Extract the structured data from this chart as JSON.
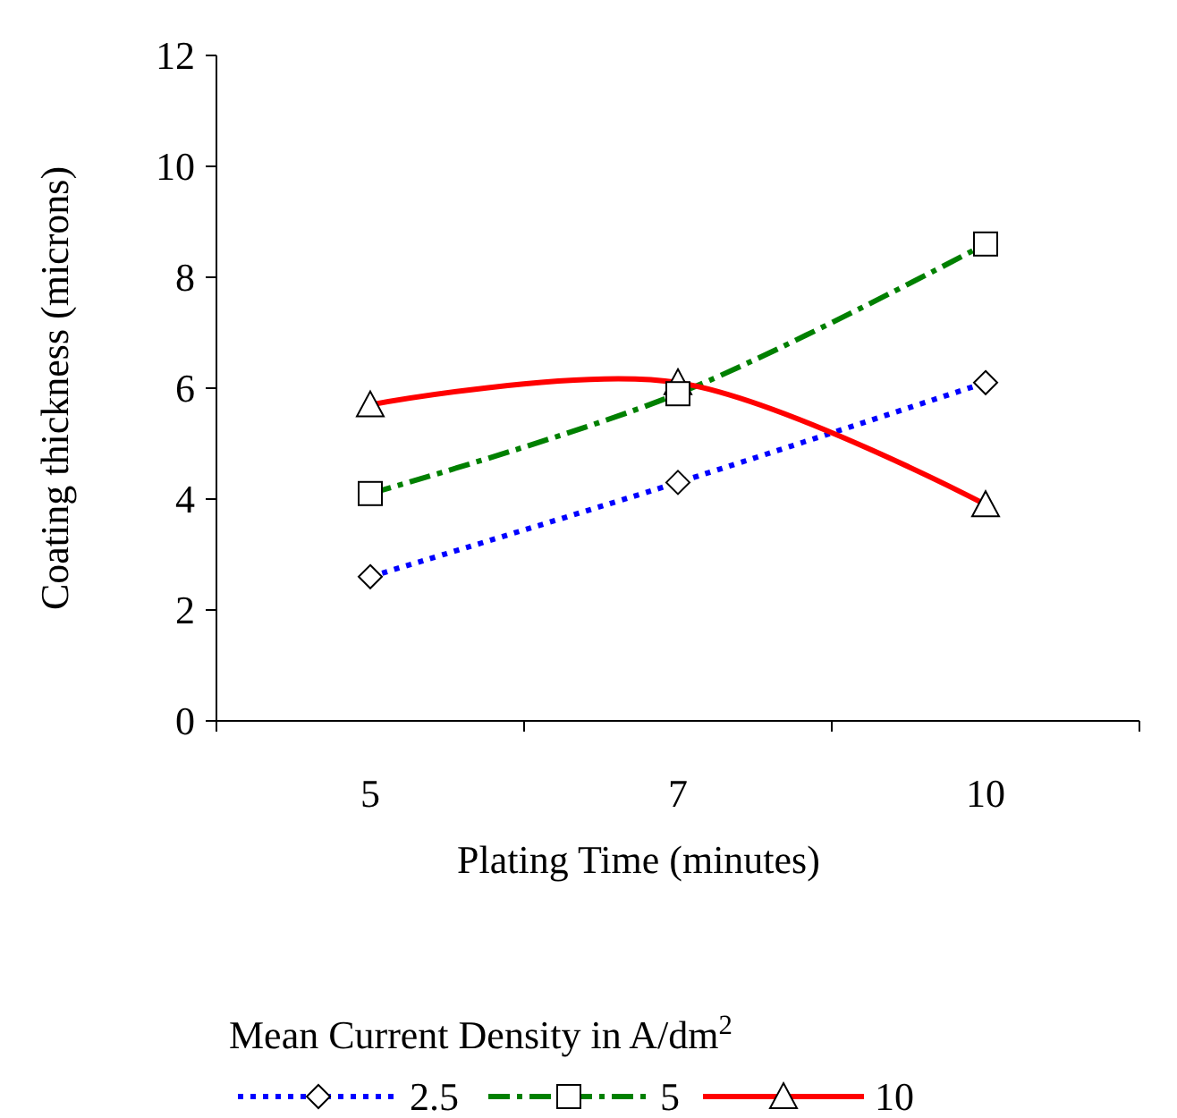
{
  "chart_data": {
    "type": "line",
    "xlabel": "Plating Time (minutes)",
    "ylabel": "Coating thickness (microns)",
    "legend_title": "Mean Current Density in A/dm$^{2}$",
    "categories": [
      "5",
      "7",
      "10"
    ],
    "ylim": [
      0,
      12
    ],
    "yticks": [
      0,
      2,
      4,
      6,
      8,
      10,
      12
    ],
    "grid": false,
    "legend": "bottom",
    "series": [
      {
        "name": "2.5",
        "color": "#0000ff",
        "values": [
          2.6,
          4.3,
          6.1
        ],
        "marker": "diamond",
        "line_style": "dotted"
      },
      {
        "name": "5",
        "color": "#008000",
        "values": [
          4.1,
          5.9,
          8.6
        ],
        "marker": "square",
        "line_style": "dashed"
      },
      {
        "name": "10",
        "color": "#ff0000",
        "values": [
          5.7,
          6.1,
          3.9
        ],
        "marker": "triangle",
        "line_style": "solid"
      }
    ]
  }
}
